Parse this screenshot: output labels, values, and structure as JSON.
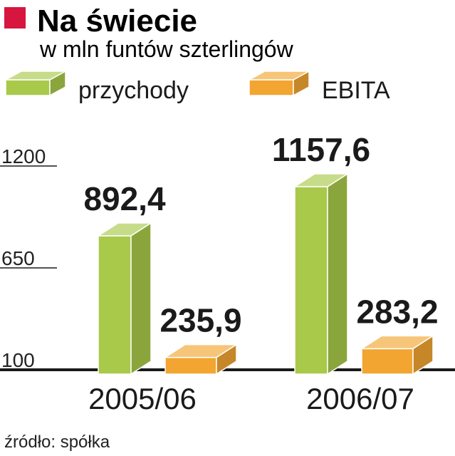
{
  "header": {
    "title": "Na świecie",
    "subtitle": "w mln funtów szterlingów",
    "marker_color": "#d6163f"
  },
  "legend": {
    "items": [
      {
        "label": "przychody",
        "color": "#a9c94a"
      },
      {
        "label": "EBITA",
        "color": "#f2a531"
      }
    ]
  },
  "source": "źródło: spółka",
  "chart_data": {
    "type": "bar",
    "title": "Na świecie",
    "subtitle": "w mln funtów szterlingów",
    "categories": [
      "2005/06",
      "2006/07"
    ],
    "series": [
      {
        "name": "przychody",
        "values": [
          892.4,
          1157.6
        ],
        "labels": [
          "892,4",
          "1157,6"
        ],
        "color": "#a9c94a"
      },
      {
        "name": "EBITA",
        "values": [
          235.9,
          283.2
        ],
        "labels": [
          "235,9",
          "283,2"
        ],
        "color": "#f2a531"
      }
    ],
    "y_ticks": [
      100,
      650,
      1200
    ],
    "y_tick_labels": [
      "100",
      "650",
      "1200"
    ],
    "ylim": [
      100,
      1200
    ],
    "grid": true,
    "legend_position": "top",
    "xlabel": "",
    "ylabel": ""
  }
}
